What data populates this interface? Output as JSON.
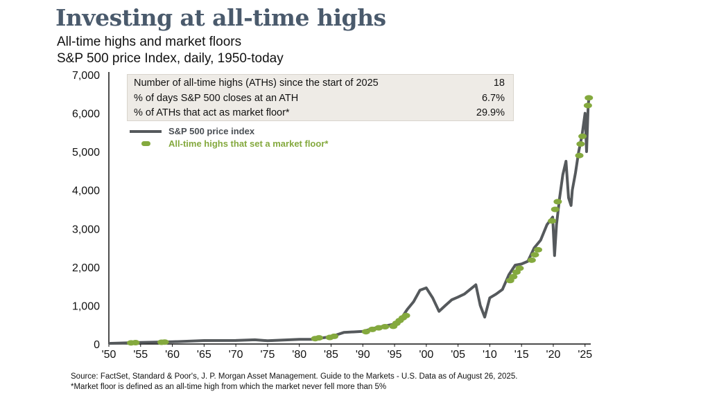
{
  "title": "Investing at all-time highs",
  "subtitle1": "All-time highs and market floors",
  "subtitle2": "S&P 500 price Index, daily, 1950-today",
  "stats": [
    {
      "label": "Number of all-time highs (ATHs) since the start of 2025",
      "value": "18"
    },
    {
      "label": "% of days S&P 500 closes at an ATH",
      "value": "6.7%"
    },
    {
      "label": "% of ATHs that act as market floor*",
      "value": "29.9%"
    }
  ],
  "legend": {
    "series": "S&P 500 price index",
    "floors": "All-time highs that set a market floor*"
  },
  "footer": {
    "source": "Source: FactSet, Standard & Poor's, J. P. Morgan Asset Management. Guide to the Markets - U.S. Data as of August 26, 2025.",
    "note": "*Market floor is defined as an all-time high from which the market never fell more than 5%"
  },
  "colors": {
    "title": "#4a5a6c",
    "series": "#55595c",
    "floor": "#84a93e",
    "stats_bg": "#eeebe6"
  },
  "chart_data": {
    "type": "line",
    "xlim": [
      1950,
      2025.9
    ],
    "ylim": [
      0,
      7000
    ],
    "grid": false,
    "legend_position": "top-left",
    "y_ticks": [
      0,
      1000,
      2000,
      3000,
      4000,
      5000,
      6000,
      7000
    ],
    "y_tick_labels": [
      "0",
      "1,000",
      "2,000",
      "3,000",
      "4,000",
      "5,000",
      "6,000",
      "7,000"
    ],
    "x_ticks": [
      1950,
      1955,
      1960,
      1965,
      1970,
      1975,
      1980,
      1985,
      1990,
      1995,
      2000,
      2005,
      2010,
      2015,
      2020,
      2025
    ],
    "x_tick_labels": [
      "'50",
      "'55",
      "'60",
      "'65",
      "'70",
      "'75",
      "'80",
      "'85",
      "'90",
      "'95",
      "'00",
      "'05",
      "'10",
      "'15",
      "'20",
      "'25"
    ],
    "series": [
      {
        "name": "S&P 500 price index",
        "x": [
          1950,
          1955,
          1960,
          1965,
          1970,
          1973,
          1975,
          1980,
          1982,
          1985,
          1987,
          1990,
          1992,
          1995,
          1996,
          1997,
          1998,
          1999,
          2000,
          2001,
          2002,
          2003,
          2004,
          2005,
          2006,
          2007.8,
          2008.5,
          2009.2,
          2010,
          2011,
          2012,
          2013,
          2014,
          2015,
          2016,
          2017,
          2018,
          2019,
          2019.9,
          2020.2,
          2020.5,
          2021,
          2021.5,
          2022,
          2022.4,
          2022.8,
          2023,
          2023.5,
          2024,
          2024.5,
          2025,
          2025.25,
          2025.5,
          2025.65
        ],
        "y": [
          17,
          40,
          58,
          90,
          92,
          110,
          85,
          120,
          120,
          190,
          300,
          330,
          420,
          520,
          650,
          900,
          1100,
          1400,
          1460,
          1200,
          850,
          1000,
          1150,
          1220,
          1300,
          1540,
          1000,
          700,
          1200,
          1300,
          1420,
          1800,
          2050,
          2080,
          2150,
          2500,
          2700,
          3100,
          3300,
          2300,
          3100,
          3800,
          4400,
          4750,
          3800,
          3600,
          4000,
          4450,
          5000,
          5400,
          6000,
          5000,
          6200,
          6450
        ]
      },
      {
        "name": "All-time highs that set a market floor*",
        "x": [
          1953.5,
          1954.2,
          1958.3,
          1958.8,
          1982.5,
          1983.1,
          1984.8,
          1985.5,
          1990.5,
          1991.5,
          1992.5,
          1993.5,
          1994.8,
          1995.3,
          1995.8,
          1996.3,
          1996.8,
          2013.2,
          2013.7,
          2014.2,
          2014.7,
          2016.6,
          2017.1,
          2017.6,
          2019.8,
          2020.3,
          2020.7,
          2024.1,
          2024.3,
          2024.6,
          2025.45,
          2025.6
        ],
        "y": [
          30,
          35,
          45,
          50,
          140,
          160,
          170,
          200,
          320,
          380,
          420,
          450,
          460,
          540,
          610,
          680,
          740,
          1650,
          1750,
          1870,
          1970,
          2180,
          2320,
          2450,
          3200,
          3500,
          3700,
          4900,
          5200,
          5400,
          6200,
          6400
        ]
      }
    ]
  }
}
